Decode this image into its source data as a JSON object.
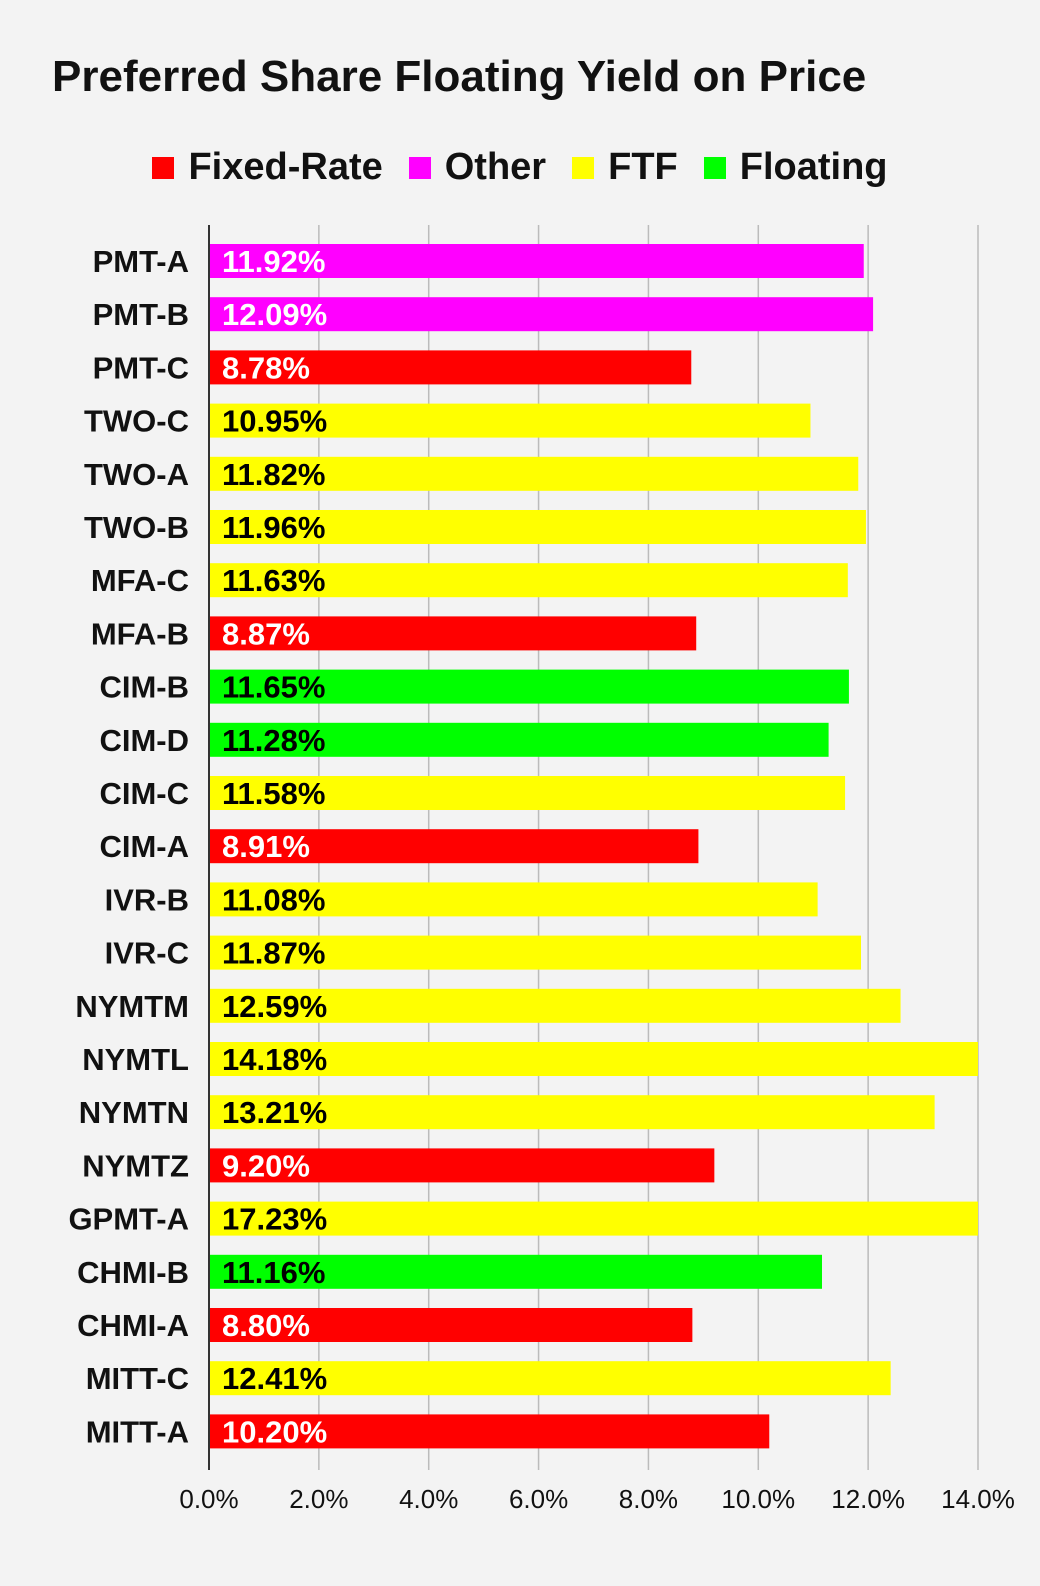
{
  "chart_data": {
    "type": "bar",
    "orientation": "horizontal",
    "title": "Preferred Share Floating Yield on Price",
    "legend": [
      {
        "name": "Fixed-Rate",
        "color": "#ff0000"
      },
      {
        "name": "Other",
        "color": "#ff00ff"
      },
      {
        "name": "FTF",
        "color": "#ffff00"
      },
      {
        "name": "Floating",
        "color": "#00ff00"
      }
    ],
    "legend_position": "top",
    "categories": [
      "PMT-A",
      "PMT-B",
      "PMT-C",
      "TWO-C",
      "TWO-A",
      "TWO-B",
      "MFA-C",
      "MFA-B",
      "CIM-B",
      "CIM-D",
      "CIM-C",
      "CIM-A",
      "IVR-B",
      "IVR-C",
      "NYMTM",
      "NYMTL",
      "NYMTN",
      "NYMTZ",
      "GPMT-A",
      "CHMI-B",
      "CHMI-A",
      "MITT-C",
      "MITT-A"
    ],
    "values": [
      11.92,
      12.09,
      8.78,
      10.95,
      11.82,
      11.96,
      11.63,
      8.87,
      11.65,
      11.28,
      11.58,
      8.91,
      11.08,
      11.87,
      12.59,
      14.18,
      13.21,
      9.2,
      17.23,
      11.16,
      8.8,
      12.41,
      10.2
    ],
    "value_labels": [
      "11.92%",
      "12.09%",
      "8.78%",
      "10.95%",
      "11.82%",
      "11.96%",
      "11.63%",
      "8.87%",
      "11.65%",
      "11.28%",
      "11.58%",
      "8.91%",
      "11.08%",
      "11.87%",
      "12.59%",
      "14.18%",
      "13.21%",
      "9.20%",
      "17.23%",
      "11.16%",
      "8.80%",
      "12.41%",
      "10.20%"
    ],
    "bar_types": [
      "Other",
      "Other",
      "Fixed-Rate",
      "FTF",
      "FTF",
      "FTF",
      "FTF",
      "Fixed-Rate",
      "Floating",
      "Floating",
      "FTF",
      "Fixed-Rate",
      "FTF",
      "FTF",
      "FTF",
      "FTF",
      "FTF",
      "Fixed-Rate",
      "FTF",
      "Floating",
      "Fixed-Rate",
      "FTF",
      "Fixed-Rate"
    ],
    "label_text_colors": {
      "Fixed-Rate": "#ffffff",
      "Other": "#ffffff",
      "FTF": "#000000",
      "Floating": "#000000"
    },
    "xlim": [
      0,
      14
    ],
    "x_ticks": [
      0,
      2,
      4,
      6,
      8,
      10,
      12,
      14
    ],
    "x_tick_labels": [
      "0.0%",
      "2.0%",
      "4.0%",
      "6.0%",
      "8.0%",
      "10.0%",
      "12.0%",
      "14.0%"
    ],
    "grid": true
  }
}
